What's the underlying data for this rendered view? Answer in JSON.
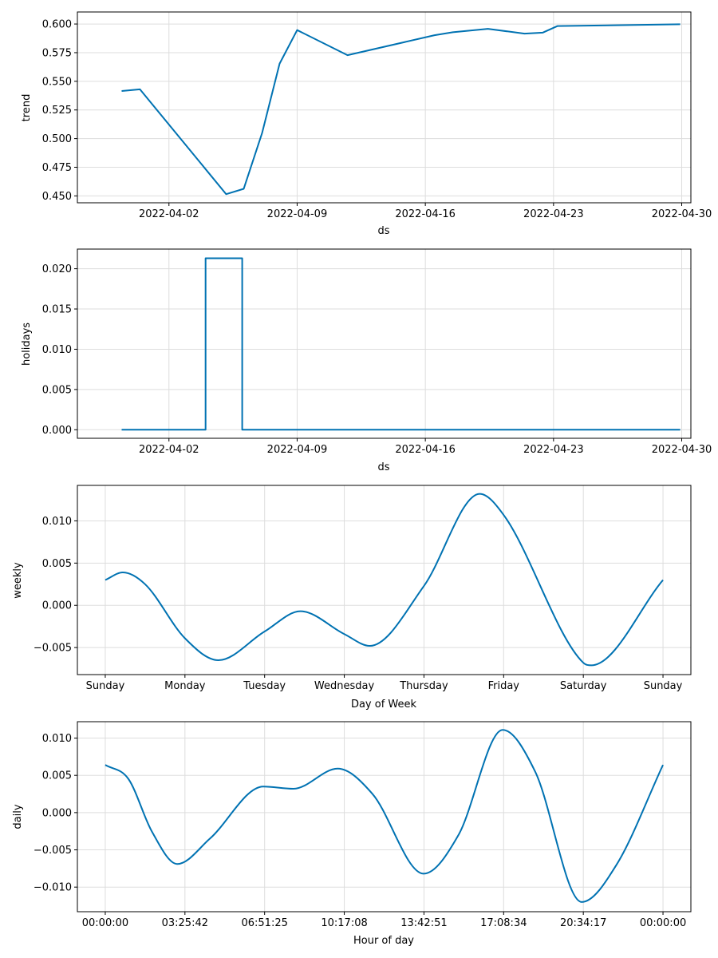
{
  "chart_data": [
    {
      "type": "line",
      "xlabel": "ds",
      "ylabel": "trend",
      "x_type": "date",
      "xlim": [
        "2022-03-28T00:00",
        "2022-04-30T12:00"
      ],
      "ylim": [
        0.444,
        0.6105
      ],
      "grid": true,
      "color": "#0072B2",
      "x_ticks": [
        {
          "value": "2022-04-02T00:00",
          "label": "2022-04-02"
        },
        {
          "value": "2022-04-09T00:00",
          "label": "2022-04-09"
        },
        {
          "value": "2022-04-16T00:00",
          "label": "2022-04-16"
        },
        {
          "value": "2022-04-23T00:00",
          "label": "2022-04-23"
        },
        {
          "value": "2022-04-30T00:00",
          "label": "2022-04-30"
        }
      ],
      "y_ticks": [
        {
          "value": 0.45,
          "label": "0.450"
        },
        {
          "value": 0.475,
          "label": "0.475"
        },
        {
          "value": 0.5,
          "label": "0.500"
        },
        {
          "value": 0.525,
          "label": "0.525"
        },
        {
          "value": 0.55,
          "label": "0.550"
        },
        {
          "value": 0.575,
          "label": "0.575"
        },
        {
          "value": 0.6,
          "label": "0.600"
        }
      ],
      "points": [
        {
          "x": "2022-03-30T10:00",
          "y": 0.5415
        },
        {
          "x": "2022-03-31T10:00",
          "y": 0.543
        },
        {
          "x": "2022-04-05T03:00",
          "y": 0.4515
        },
        {
          "x": "2022-04-06T02:00",
          "y": 0.4562
        },
        {
          "x": "2022-04-07T02:00",
          "y": 0.5047
        },
        {
          "x": "2022-04-08T01:00",
          "y": 0.5654
        },
        {
          "x": "2022-04-09T00:00",
          "y": 0.5947
        },
        {
          "x": "2022-04-11T18:00",
          "y": 0.5728
        },
        {
          "x": "2022-04-16T12:00",
          "y": 0.5902
        },
        {
          "x": "2022-04-17T12:00",
          "y": 0.5928
        },
        {
          "x": "2022-04-19T10:00",
          "y": 0.5958
        },
        {
          "x": "2022-04-21T10:00",
          "y": 0.5916
        },
        {
          "x": "2022-04-22T10:00",
          "y": 0.5925
        },
        {
          "x": "2022-04-23T05:00",
          "y": 0.5982
        },
        {
          "x": "2022-04-29T22:00",
          "y": 0.5998
        }
      ]
    },
    {
      "type": "line",
      "xlabel": "ds",
      "ylabel": "holidays",
      "x_type": "date",
      "xlim": [
        "2022-03-28T00:00",
        "2022-04-30T12:00"
      ],
      "ylim": [
        -0.00106,
        0.02244
      ],
      "grid": true,
      "color": "#0072B2",
      "x_ticks": [
        {
          "value": "2022-04-02T00:00",
          "label": "2022-04-02"
        },
        {
          "value": "2022-04-09T00:00",
          "label": "2022-04-09"
        },
        {
          "value": "2022-04-16T00:00",
          "label": "2022-04-16"
        },
        {
          "value": "2022-04-23T00:00",
          "label": "2022-04-23"
        },
        {
          "value": "2022-04-30T00:00",
          "label": "2022-04-30"
        }
      ],
      "y_ticks": [
        {
          "value": 0.0,
          "label": "0.000"
        },
        {
          "value": 0.005,
          "label": "0.005"
        },
        {
          "value": 0.01,
          "label": "0.010"
        },
        {
          "value": 0.015,
          "label": "0.015"
        },
        {
          "value": 0.02,
          "label": "0.020"
        }
      ],
      "points": [
        {
          "x": "2022-03-30T10:00",
          "y": 0.0
        },
        {
          "x": "2022-04-04T00:00",
          "y": 0.0
        },
        {
          "x": "2022-04-04T00:00",
          "y": 0.0213
        },
        {
          "x": "2022-04-06T00:00",
          "y": 0.0213
        },
        {
          "x": "2022-04-06T00:00",
          "y": 0.0
        },
        {
          "x": "2022-04-29T22:00",
          "y": 0.0
        }
      ]
    },
    {
      "type": "line",
      "xlabel": "Day of Week",
      "ylabel": "weekly",
      "x_type": "number",
      "x_unit": "days from Sunday",
      "xlim": [
        -0.35,
        7.35
      ],
      "ylim": [
        -0.0082,
        0.0142
      ],
      "grid": true,
      "color": "#0072B2",
      "x_ticks": [
        {
          "value": 0,
          "label": "Sunday"
        },
        {
          "value": 1,
          "label": "Monday"
        },
        {
          "value": 2,
          "label": "Tuesday"
        },
        {
          "value": 3,
          "label": "Wednesday"
        },
        {
          "value": 4,
          "label": "Thursday"
        },
        {
          "value": 5,
          "label": "Friday"
        },
        {
          "value": 6,
          "label": "Saturday"
        },
        {
          "value": 7,
          "label": "Sunday"
        }
      ],
      "y_ticks": [
        {
          "value": -0.005,
          "label": "−0.005"
        },
        {
          "value": 0.0,
          "label": "0.000"
        },
        {
          "value": 0.005,
          "label": "0.005"
        },
        {
          "value": 0.01,
          "label": "0.010"
        }
      ],
      "smooth": true,
      "points": [
        {
          "x": 0.0,
          "y": 0.003
        },
        {
          "x": 0.22,
          "y": 0.0039
        },
        {
          "x": 0.5,
          "y": 0.0025
        },
        {
          "x": 1.0,
          "y": -0.0039
        },
        {
          "x": 1.42,
          "y": -0.0065
        },
        {
          "x": 2.0,
          "y": -0.0031
        },
        {
          "x": 2.45,
          "y": -0.0007
        },
        {
          "x": 3.0,
          "y": -0.0034
        },
        {
          "x": 3.32,
          "y": -0.0048
        },
        {
          "x": 4.0,
          "y": 0.0023
        },
        {
          "x": 4.7,
          "y": 0.0132
        },
        {
          "x": 5.0,
          "y": 0.0107
        },
        {
          "x": 6.0,
          "y": -0.0068
        },
        {
          "x": 6.1,
          "y": -0.0071
        },
        {
          "x": 7.0,
          "y": 0.003
        }
      ]
    },
    {
      "type": "line",
      "xlabel": "Hour of day",
      "ylabel": "daily",
      "x_type": "number",
      "x_unit": "hours",
      "xlim": [
        -1.2,
        25.2
      ],
      "ylim": [
        -0.0133,
        0.0122
      ],
      "grid": true,
      "color": "#0072B2",
      "x_ticks": [
        {
          "value": 0.0,
          "label": "00:00:00"
        },
        {
          "value": 3.4283,
          "label": "03:25:42"
        },
        {
          "value": 6.8569,
          "label": "06:51:25"
        },
        {
          "value": 10.2856,
          "label": "10:17:08"
        },
        {
          "value": 13.7142,
          "label": "13:42:51"
        },
        {
          "value": 17.1428,
          "label": "17:08:34"
        },
        {
          "value": 20.5714,
          "label": "20:34:17"
        },
        {
          "value": 24.0,
          "label": "00:00:00"
        }
      ],
      "y_ticks": [
        {
          "value": -0.01,
          "label": "−0.010"
        },
        {
          "value": -0.005,
          "label": "−0.005"
        },
        {
          "value": 0.0,
          "label": "0.000"
        },
        {
          "value": 0.005,
          "label": "0.005"
        },
        {
          "value": 0.01,
          "label": "0.010"
        }
      ],
      "smooth": true,
      "points": [
        {
          "x": 0.0,
          "y": 0.0064
        },
        {
          "x": 1.0,
          "y": 0.0045
        },
        {
          "x": 2.0,
          "y": -0.0025
        },
        {
          "x": 3.1,
          "y": -0.0069
        },
        {
          "x": 4.5,
          "y": -0.0035
        },
        {
          "x": 6.8,
          "y": 0.0035
        },
        {
          "x": 8.1,
          "y": 0.0032
        },
        {
          "x": 10.0,
          "y": 0.0059
        },
        {
          "x": 11.5,
          "y": 0.0025
        },
        {
          "x": 13.7,
          "y": -0.0082
        },
        {
          "x": 15.2,
          "y": -0.003
        },
        {
          "x": 17.1,
          "y": 0.0111
        },
        {
          "x": 18.5,
          "y": 0.0055
        },
        {
          "x": 20.5,
          "y": -0.012
        },
        {
          "x": 22.0,
          "y": -0.007
        },
        {
          "x": 24.0,
          "y": 0.0064
        }
      ]
    }
  ]
}
